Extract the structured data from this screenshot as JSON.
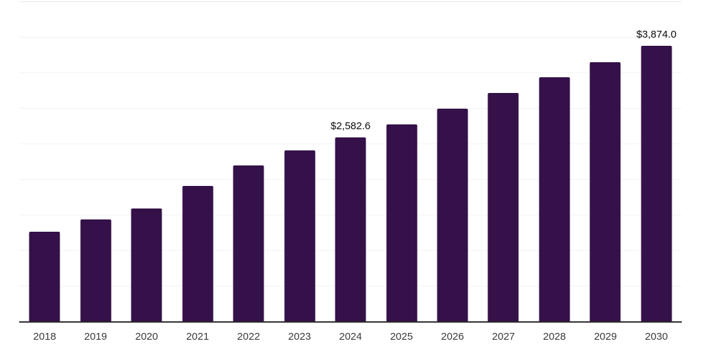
{
  "chart_data": {
    "type": "bar",
    "title": "",
    "xlabel": "",
    "ylabel": "",
    "categories": [
      "2018",
      "2019",
      "2020",
      "2021",
      "2022",
      "2023",
      "2024",
      "2025",
      "2026",
      "2027",
      "2028",
      "2029",
      "2030"
    ],
    "values": [
      1260,
      1430,
      1590,
      1900,
      2190,
      2400,
      2582.6,
      2770,
      2990,
      3210,
      3430,
      3640,
      3874.0
    ],
    "data_labels": [
      null,
      null,
      null,
      null,
      null,
      null,
      "$2,582.6",
      null,
      null,
      null,
      null,
      null,
      "$3,874.0"
    ],
    "ylim": [
      0,
      4500
    ],
    "grid_interval": 500,
    "grid_visible": true,
    "legend": "none",
    "y_axis_tick_labels": "none",
    "colors": {
      "bar": "#341148",
      "gridline": "#f3f3f3",
      "gridline_top": "#e8e8e8",
      "axis_line": "#2d2d2d",
      "data_label": "#0a0a0a",
      "tick_label": "#3a3a3a",
      "background": "#ffffff"
    }
  }
}
